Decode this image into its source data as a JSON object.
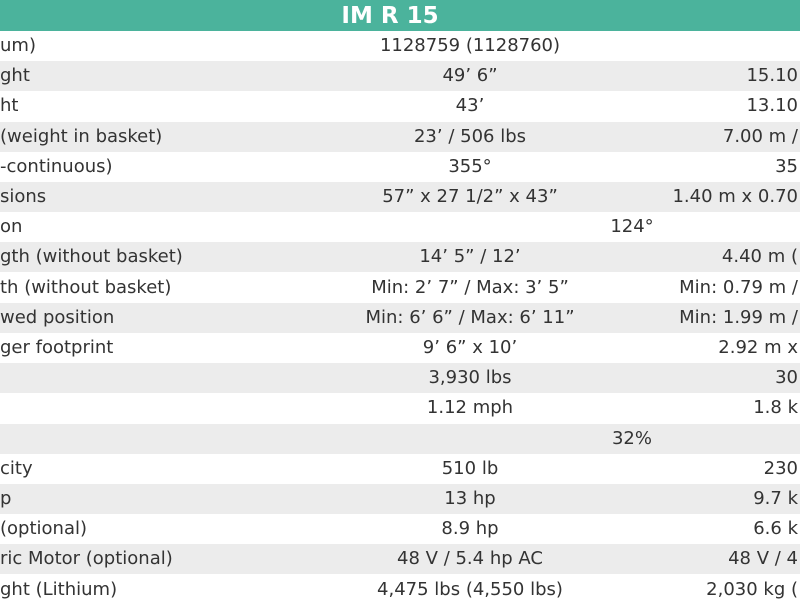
{
  "header": {
    "title": "IM R 15"
  },
  "table": {
    "rows": [
      {
        "label": "um)",
        "imperial": "1128759 (1128760)"
      },
      {
        "label": "ght",
        "imperial": "49’ 6”",
        "metric": "15.10"
      },
      {
        "label": "ht",
        "imperial": "43’",
        "metric": "13.10"
      },
      {
        "label": "(weight in basket)",
        "imperial": "23’ / 506 lbs",
        "metric": "7.00 m /"
      },
      {
        "label": "-continuous)",
        "imperial": "355°",
        "metric": "35"
      },
      {
        "label": "sions",
        "imperial": "57” x 27 1/2” x 43”",
        "metric": "1.40 m x 0.70"
      },
      {
        "label": "on",
        "shared": "124°"
      },
      {
        "label": "gth (without basket)",
        "imperial": "14’ 5” / 12’",
        "metric": "4.40 m ("
      },
      {
        "label": "th (without basket)",
        "imperial": "Min: 2’ 7” / Max: 3’ 5”",
        "metric": "Min: 0.79 m /"
      },
      {
        "label": "wed position",
        "imperial": "Min: 6’ 6” / Max: 6’ 11”",
        "metric": "Min: 1.99 m /"
      },
      {
        "label": "ger footprint",
        "imperial": "9’ 6” x 10’",
        "metric": "2.92 m x"
      },
      {
        "imperial": "3,930 lbs",
        "metric": "30"
      },
      {
        "imperial": "1.12 mph",
        "metric": "1.8 k"
      },
      {
        "shared": "32%"
      },
      {
        "label": "city",
        "imperial": "510 lb",
        "metric": "230"
      },
      {
        "label": "p",
        "imperial": "13 hp",
        "metric": "9.7 k"
      },
      {
        "label": "(optional)",
        "imperial": "8.9 hp",
        "metric": "6.6 k"
      },
      {
        "label": "ric Motor (optional)",
        "imperial": "48 V / 5.4 hp AC",
        "metric": "48 V / 4"
      },
      {
        "label": "ght (Lithium)",
        "imperial": "4,475 lbs (4,550 lbs)",
        "metric": "2,030 kg ("
      }
    ]
  }
}
